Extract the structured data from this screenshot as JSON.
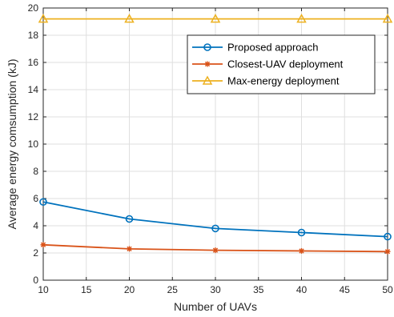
{
  "chart_data": {
    "type": "line",
    "xlabel": "Number of UAVs",
    "ylabel": "Average energy comsumption (kJ)",
    "x": [
      10,
      20,
      30,
      40,
      50
    ],
    "xlim": [
      10,
      50
    ],
    "ylim": [
      0,
      20
    ],
    "xticks": [
      10,
      15,
      20,
      25,
      30,
      35,
      40,
      45,
      50
    ],
    "yticks": [
      0,
      2,
      4,
      6,
      8,
      10,
      12,
      14,
      16,
      18,
      20
    ],
    "grid": true,
    "legend_position": "top-right",
    "series": [
      {
        "name": "Proposed approach",
        "values": [
          5.75,
          4.5,
          3.8,
          3.5,
          3.2
        ],
        "color": "#0072BD",
        "marker": "circle"
      },
      {
        "name": "Closest-UAV deployment",
        "values": [
          2.6,
          2.3,
          2.2,
          2.15,
          2.1
        ],
        "color": "#D95319",
        "marker": "asterisk"
      },
      {
        "name": "Max-energy deployment",
        "values": [
          19.2,
          19.2,
          19.2,
          19.2,
          19.2
        ],
        "color": "#EDB120",
        "marker": "triangle"
      }
    ]
  }
}
